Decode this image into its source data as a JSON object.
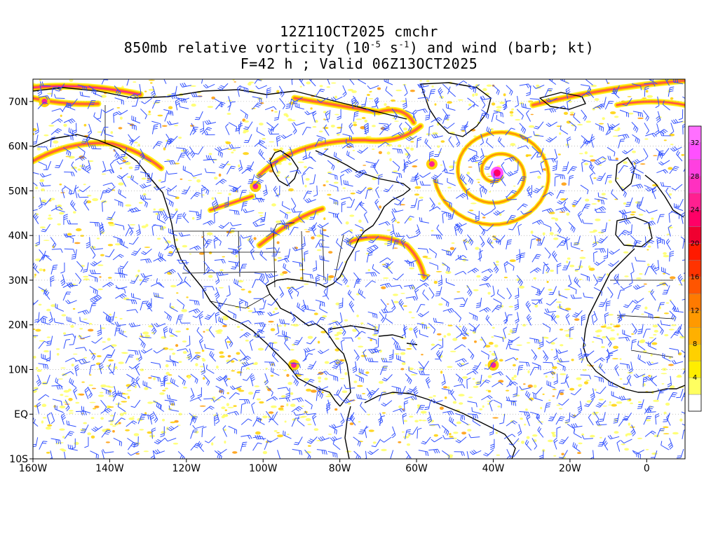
{
  "title": {
    "line1": "12Z11OCT2025 cmchr",
    "line2_prefix": "850mb relative vorticity (10",
    "line2_exp1": "-5",
    "line2_mid": " s",
    "line2_exp2": "-1",
    "line2_suffix": ") and wind (barb; kt)",
    "line3": "F=42 h ; Valid 06Z13OCT2025"
  },
  "axes": {
    "lon_ticks": [
      "160W",
      "140W",
      "120W",
      "100W",
      "80W",
      "60W",
      "40W",
      "20W",
      "0"
    ],
    "lon_values": [
      -160,
      -140,
      -120,
      -100,
      -80,
      -60,
      -40,
      -20,
      0
    ],
    "lat_ticks": [
      "70N",
      "60N",
      "50N",
      "40N",
      "30N",
      "20N",
      "10N",
      "EQ",
      "10S"
    ],
    "lat_values": [
      70,
      60,
      50,
      40,
      30,
      20,
      10,
      0,
      -10
    ],
    "lon_range": [
      -160,
      10
    ],
    "lat_range": [
      -10,
      75
    ]
  },
  "colorbar": {
    "labels": [
      "4",
      "8",
      "12",
      "16",
      "20",
      "24",
      "28",
      "32"
    ],
    "levels": [
      2,
      4,
      6,
      8,
      10,
      12,
      14,
      16,
      18,
      20,
      22,
      24,
      26,
      28,
      30,
      32,
      34
    ],
    "colors": [
      "#ffffff",
      "#ffff60",
      "#ffee00",
      "#ffd000",
      "#ffb000",
      "#ff9900",
      "#ff7a00",
      "#ff5500",
      "#ff3300",
      "#ff1a00",
      "#f00030",
      "#ff0066",
      "#ff2090",
      "#ff30c0",
      "#ff40e0",
      "#ff50ff",
      "#ff70ff"
    ]
  },
  "colors": {
    "barb": "#3050ff",
    "coast": "#000000",
    "vorticity_low": "#ffff00",
    "vorticity_mid": "#ff9900",
    "vorticity_high": "#ff00ff"
  }
}
